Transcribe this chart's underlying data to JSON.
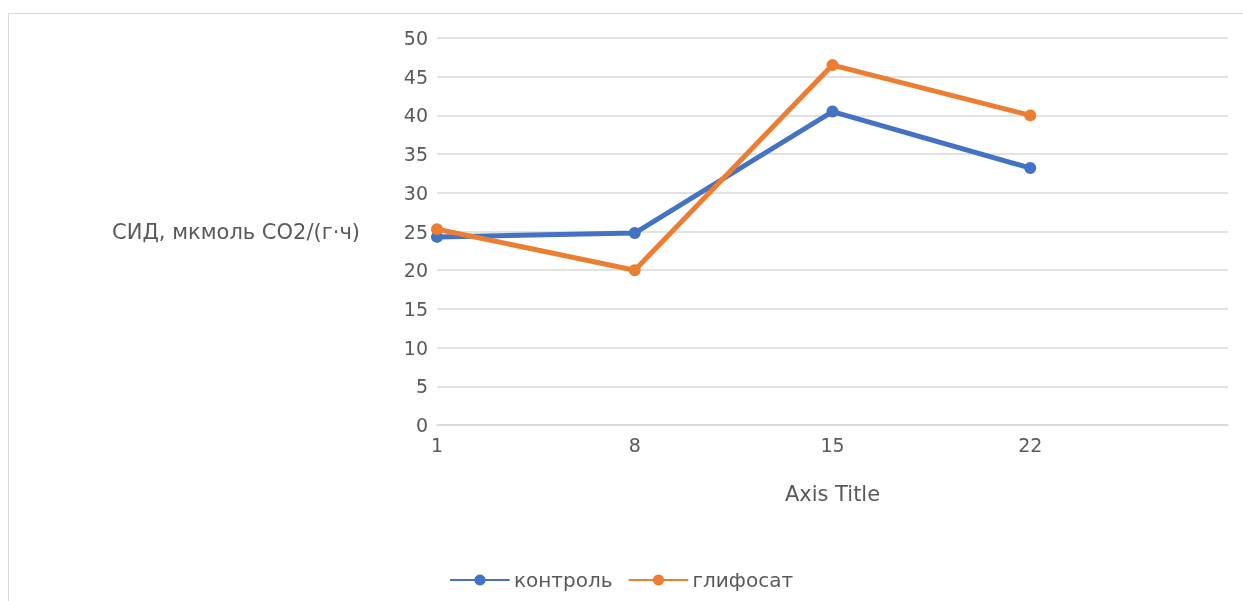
{
  "chart_data": {
    "type": "line",
    "xlabel": "Axis Title",
    "ylabel": "СИД, мкмоль CO2/(г·ч)",
    "x": [
      1,
      8,
      15,
      22
    ],
    "series": [
      {
        "name": "контроль",
        "color": "#4472c4",
        "values": [
          24.3,
          24.8,
          40.5,
          33.2
        ]
      },
      {
        "name": "глифосат",
        "color": "#ed7d31",
        "values": [
          25.3,
          20.0,
          46.5,
          40.0
        ]
      }
    ],
    "xlim": [
      1,
      29
    ],
    "xticks": [
      1,
      8,
      15,
      22
    ],
    "ylim": [
      0,
      50
    ],
    "yticks": [
      0,
      5,
      10,
      15,
      20,
      25,
      30,
      35,
      40,
      45,
      50
    ],
    "grid": "y",
    "legend": "bottom",
    "marker": "circle",
    "line_style": "solid"
  }
}
